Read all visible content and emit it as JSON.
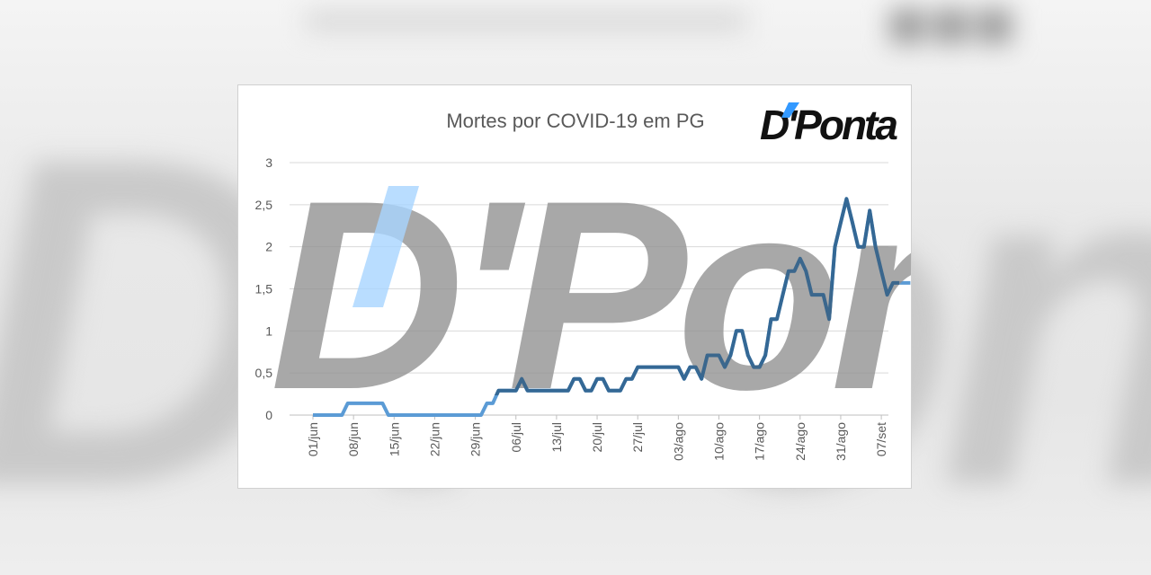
{
  "logo": {
    "text": "D'Ponta",
    "accent_color": "#3399ff"
  },
  "colors": {
    "line_light": "#5b9bd5",
    "line_dark": "#2e5f8a",
    "grid": "#d9d9d9",
    "axis_text": "#595959",
    "watermark_gray": "#8f8f8f",
    "watermark_blue": "#a8d4ff"
  },
  "chart_data": {
    "type": "line",
    "title": "Mortes por COVID-19 em PG",
    "xlabel": "",
    "ylabel": "",
    "ylim": [
      0,
      3
    ],
    "yticks": [
      0,
      0.5,
      1,
      1.5,
      2,
      2.5,
      3
    ],
    "ytick_labels": [
      "0",
      "0,5",
      "1",
      "1,5",
      "2",
      "2,5",
      "3"
    ],
    "x_tick_labels": [
      "01/jun",
      "08/jun",
      "15/jun",
      "22/jun",
      "29/jun",
      "06/jul",
      "13/jul",
      "20/jul",
      "27/jul",
      "03/ago",
      "10/ago",
      "17/ago",
      "24/ago",
      "31/ago",
      "07/set"
    ],
    "x_start": "01/jun",
    "x_end": "12/set",
    "grid": true,
    "legend": "none",
    "series": [
      {
        "values": [
          0,
          0,
          0,
          0,
          0,
          0,
          0.14,
          0.14,
          0.14,
          0.14,
          0.14,
          0.14,
          0.14,
          0,
          0,
          0,
          0,
          0,
          0,
          0,
          0,
          0,
          0,
          0,
          0,
          0,
          0,
          0,
          0,
          0,
          0.14,
          0.14,
          0.29,
          0.29,
          0.29,
          0.29,
          0.43,
          0.29,
          0.29,
          0.29,
          0.29,
          0.29,
          0.29,
          0.29,
          0.29,
          0.43,
          0.43,
          0.29,
          0.29,
          0.43,
          0.43,
          0.29,
          0.29,
          0.29,
          0.43,
          0.43,
          0.57,
          0.57,
          0.57,
          0.57,
          0.57,
          0.57,
          0.57,
          0.57,
          0.43,
          0.57,
          0.57,
          0.43,
          0.71,
          0.71,
          0.71,
          0.57,
          0.71,
          1.0,
          1.0,
          0.71,
          0.57,
          0.57,
          0.71,
          1.14,
          1.14,
          1.43,
          1.71,
          1.71,
          1.86,
          1.71,
          1.43,
          1.43,
          1.43,
          1.14,
          2.0,
          2.29,
          2.57,
          2.29,
          2.0,
          2.0,
          2.43,
          2.0,
          1.71,
          1.43,
          1.57,
          1.57,
          1.57,
          1.57
        ]
      }
    ]
  }
}
